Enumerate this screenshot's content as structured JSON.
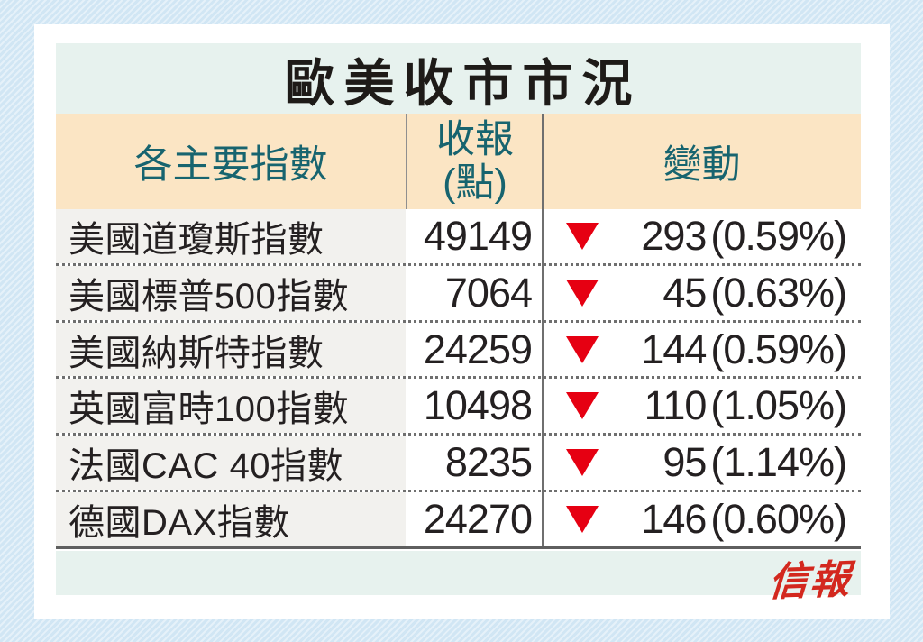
{
  "title": "歐美收市市況",
  "header": {
    "index_label": "各主要指數",
    "close_label_line1": "收報",
    "close_label_line2": "(點)",
    "change_label": "變動"
  },
  "footer": {
    "logo_text": "信報"
  },
  "colors": {
    "page_bg": "#d7eaf6",
    "card_bg": "#ffffff",
    "title_bg": "#e7f2ee",
    "header_bg": "#fbe5c4",
    "header_text": "#17646f",
    "row_name_bg": "#f2f1ee",
    "body_text": "#242021",
    "down_arrow_red": "#e60012",
    "logo_red": "#d3281e"
  },
  "chart_data": {
    "type": "table",
    "title": "歐美收市市況",
    "columns": [
      "各主要指數",
      "收報(點)",
      "變動"
    ],
    "rows": [
      {
        "index_name": "美國道瓊斯指數",
        "close": "49149",
        "direction": "down",
        "change": "293",
        "change_pct": "(0.59%)"
      },
      {
        "index_name": "美國標普500指數",
        "close": "7064",
        "direction": "down",
        "change": "45",
        "change_pct": "(0.63%)"
      },
      {
        "index_name": "美國納斯特指數",
        "close": "24259",
        "direction": "down",
        "change": "144",
        "change_pct": "(0.59%)"
      },
      {
        "index_name": "英國富時100指數",
        "close": "10498",
        "direction": "down",
        "change": "110",
        "change_pct": "(1.05%)"
      },
      {
        "index_name": "法國CAC 40指數",
        "close": "8235",
        "direction": "down",
        "change": "95",
        "change_pct": "(1.14%)"
      },
      {
        "index_name": "德國DAX指數",
        "close": "24270",
        "direction": "down",
        "change": "146",
        "change_pct": "(0.60%)"
      }
    ]
  }
}
